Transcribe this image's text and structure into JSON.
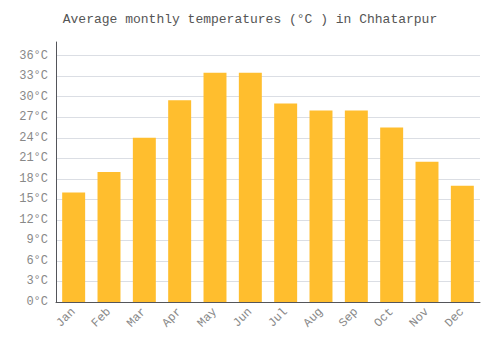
{
  "chart_data": {
    "type": "bar",
    "title": "Average monthly temperatures (°C ) in Chhatarpur",
    "categories": [
      "Jan",
      "Feb",
      "Mar",
      "Apr",
      "May",
      "Jun",
      "Jul",
      "Aug",
      "Sep",
      "Oct",
      "Nov",
      "Dec"
    ],
    "values": [
      16,
      19,
      24,
      29.5,
      33.5,
      33.5,
      29,
      28,
      28,
      25.5,
      20.5,
      17
    ],
    "color": "#FFBE2E",
    "ylim": [
      0,
      38
    ],
    "yticks": [
      {
        "value": 0,
        "label": "0°C"
      },
      {
        "value": 3,
        "label": "3°C"
      },
      {
        "value": 6,
        "label": "6°C"
      },
      {
        "value": 9,
        "label": "9°C"
      },
      {
        "value": 12,
        "label": "12°C"
      },
      {
        "value": 15,
        "label": "15°C"
      },
      {
        "value": 18,
        "label": "18°C"
      },
      {
        "value": 21,
        "label": "21°C"
      },
      {
        "value": 24,
        "label": "24°C"
      },
      {
        "value": 27,
        "label": "27°C"
      },
      {
        "value": 30,
        "label": "30°C"
      },
      {
        "value": 33,
        "label": "33°C"
      },
      {
        "value": 36,
        "label": "36°C"
      }
    ],
    "grid": true
  }
}
